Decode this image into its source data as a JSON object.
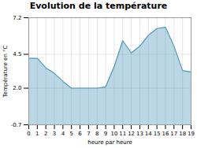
{
  "chart_data": {
    "type": "area",
    "title": "Evolution de la température",
    "xlabel": "heure par heure",
    "ylabel": "Température en °C",
    "x": [
      0,
      1,
      2,
      3,
      4,
      5,
      6,
      7,
      8,
      9,
      10,
      11,
      12,
      13,
      14,
      15,
      16,
      17,
      18,
      19
    ],
    "values": [
      4.2,
      4.2,
      3.5,
      3.1,
      2.5,
      2.0,
      2.0,
      2.0,
      2.0,
      2.1,
      3.6,
      5.5,
      4.6,
      5.1,
      5.9,
      6.4,
      6.5,
      5.1,
      3.3,
      3.2
    ],
    "color": "#5599bb",
    "xlim": [
      0,
      19
    ],
    "ylim": [
      -0.7,
      7.2
    ],
    "xticks": [
      0,
      1,
      2,
      3,
      4,
      5,
      6,
      7,
      8,
      9,
      10,
      11,
      12,
      13,
      14,
      15,
      16,
      17,
      18,
      19
    ],
    "yticks": [
      -0.7,
      {
        "value": 2.0,
        "label": "2.0"
      },
      4.5,
      7.2
    ],
    "grid": true
  }
}
